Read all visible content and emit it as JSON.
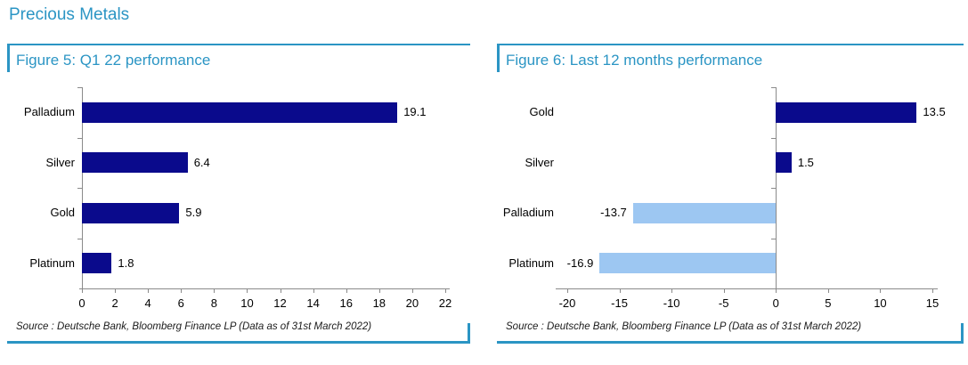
{
  "page": {
    "title": "Precious Metals"
  },
  "colors": {
    "accent": "#2B95C4",
    "bar_positive": "#0A0A8C",
    "bar_negative": "#9DC7F2",
    "axis": "#8A8A8A",
    "label": "#000000",
    "source_text": "#1A1A1A"
  },
  "panels": [
    {
      "figure_title": "Figure 5: Q1 22 performance",
      "source": "Source : Deutsche Bank, Bloomberg Finance LP (Data as of 31st March 2022)"
    },
    {
      "figure_title": "Figure 6: Last 12 months performance",
      "source": "Source : Deutsche Bank, Bloomberg Finance LP (Data as of 31st March 2022)"
    }
  ],
  "chart_data": [
    {
      "type": "bar",
      "orientation": "horizontal",
      "title": "Figure 5: Q1 22 performance",
      "categories": [
        "Palladium",
        "Silver",
        "Gold",
        "Platinum"
      ],
      "values": [
        19.1,
        6.4,
        5.9,
        1.8
      ],
      "value_labels": [
        "19.1",
        "6.4",
        "5.9",
        "1.8"
      ],
      "xlim": [
        0,
        22
      ],
      "xticks": [
        0,
        2,
        4,
        6,
        8,
        10,
        12,
        14,
        16,
        18,
        20,
        22
      ],
      "grid": false,
      "legend": false,
      "positive_color": "#0A0A8C",
      "negative_color": "#9DC7F2"
    },
    {
      "type": "bar",
      "orientation": "horizontal",
      "title": "Figure 6: Last 12 months performance",
      "categories": [
        "Gold",
        "Silver",
        "Palladium",
        "Platinum"
      ],
      "values": [
        13.5,
        1.5,
        -13.7,
        -16.9
      ],
      "value_labels": [
        "13.5",
        "1.5",
        "-13.7",
        "-16.9"
      ],
      "xlim": [
        -20,
        15
      ],
      "xticks": [
        -20,
        -15,
        -10,
        -5,
        0,
        5,
        10,
        15
      ],
      "grid": false,
      "legend": false,
      "positive_color": "#0A0A8C",
      "negative_color": "#9DC7F2"
    }
  ]
}
